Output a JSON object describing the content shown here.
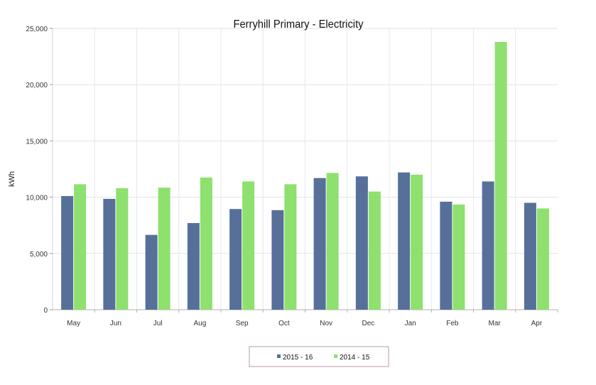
{
  "chart_data": {
    "type": "bar",
    "title": "Ferryhill Primary  - Electricity",
    "xlabel": "",
    "ylabel": "kWh",
    "categories": [
      "May",
      "Jun",
      "Jul",
      "Aug",
      "Sep",
      "Oct",
      "Nov",
      "Dec",
      "Jan",
      "Feb",
      "Mar",
      "Apr"
    ],
    "series": [
      {
        "name": "2015 - 16",
        "color": "#56709a",
        "values": [
          10100,
          9850,
          6650,
          7700,
          8950,
          8850,
          11700,
          11850,
          12200,
          9600,
          11400,
          9500
        ]
      },
      {
        "name": "2014 - 15",
        "color": "#8ee06f",
        "values": [
          11150,
          10800,
          10850,
          11750,
          11400,
          11150,
          12150,
          10500,
          12000,
          9350,
          23800,
          9000
        ]
      }
    ],
    "ylim": [
      0,
      25000
    ],
    "yticks": [
      0,
      5000,
      10000,
      15000,
      20000,
      25000
    ],
    "ytick_labels": [
      "0",
      "5,000",
      "10,000",
      "15,000",
      "20,000",
      "25,000"
    ],
    "grid": true,
    "legend_position": "bottom-center"
  }
}
